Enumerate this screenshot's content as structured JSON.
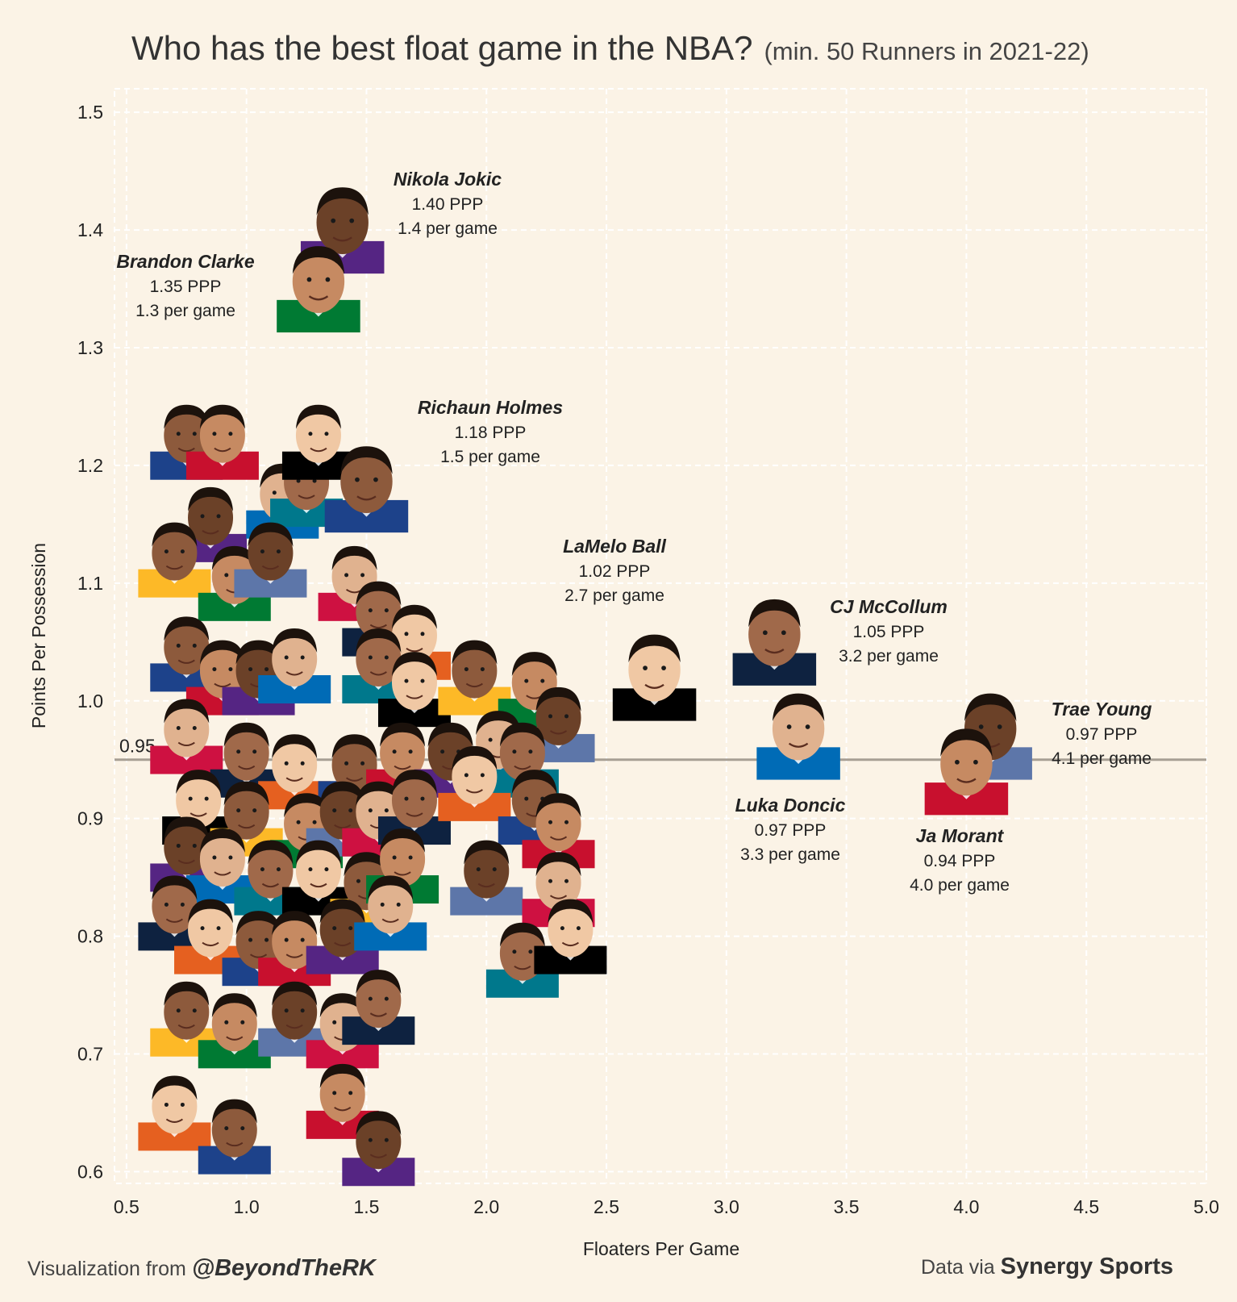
{
  "title": "Who has the best float game in the NBA?",
  "subtitle": "(min. 50 Runners in 2021-22)",
  "footer": {
    "left_prefix": "Visualization from",
    "left_handle": "@BeyondTheRK",
    "right_prefix": "Data via",
    "right_source": "Synergy Sports"
  },
  "chart_data": {
    "type": "scatter",
    "xlabel": "Floaters Per Game",
    "ylabel": "Points Per Possession",
    "xlim": [
      0.45,
      5.0
    ],
    "ylim": [
      0.59,
      1.52
    ],
    "x_ticks": [
      "0.5",
      "1.0",
      "1.5",
      "2.0",
      "2.5",
      "3.0",
      "3.5",
      "4.0",
      "4.5",
      "5.0"
    ],
    "y_ticks": [
      "0.6",
      "0.7",
      "0.8",
      "0.9",
      "1.0",
      "1.1",
      "1.2",
      "1.3",
      "1.4",
      "1.5"
    ],
    "grid": true,
    "reference_line": {
      "y": 0.95,
      "label": "0.95"
    },
    "labeled_points": [
      {
        "name": "Nikola Jokic",
        "ppp": "1.40 PPP",
        "pg": "1.4 per game",
        "x": 1.4,
        "y": 1.4
      },
      {
        "name": "Brandon Clarke",
        "ppp": "1.35 PPP",
        "pg": "1.3 per game",
        "x": 1.3,
        "y": 1.35
      },
      {
        "name": "Richaun Holmes",
        "ppp": "1.18 PPP",
        "pg": "1.5 per game",
        "x": 1.5,
        "y": 1.18
      },
      {
        "name": "LaMelo Ball",
        "ppp": "1.02 PPP",
        "pg": "2.7 per game",
        "x": 2.7,
        "y": 1.02
      },
      {
        "name": "CJ McCollum",
        "ppp": "1.05 PPP",
        "pg": "3.2 per game",
        "x": 3.2,
        "y": 1.05
      },
      {
        "name": "Luka Doncic",
        "ppp": "0.97 PPP",
        "pg": "3.3 per game",
        "x": 3.3,
        "y": 0.97
      },
      {
        "name": "Trae Young",
        "ppp": "0.97 PPP",
        "pg": "4.1 per game",
        "x": 4.1,
        "y": 0.97
      },
      {
        "name": "Ja Morant",
        "ppp": "0.94 PPP",
        "pg": "4.0 per game",
        "x": 4.0,
        "y": 0.94
      }
    ],
    "unlabeled_points": [
      [
        0.75,
        1.22
      ],
      [
        0.9,
        1.22
      ],
      [
        0.85,
        1.15
      ],
      [
        1.15,
        1.17
      ],
      [
        1.25,
        1.18
      ],
      [
        1.3,
        1.22
      ],
      [
        0.7,
        1.12
      ],
      [
        0.95,
        1.1
      ],
      [
        1.1,
        1.12
      ],
      [
        1.45,
        1.1
      ],
      [
        1.55,
        1.07
      ],
      [
        1.7,
        1.05
      ],
      [
        0.75,
        1.04
      ],
      [
        0.9,
        1.02
      ],
      [
        1.05,
        1.02
      ],
      [
        1.2,
        1.03
      ],
      [
        1.55,
        1.03
      ],
      [
        1.7,
        1.01
      ],
      [
        1.95,
        1.02
      ],
      [
        2.2,
        1.01
      ],
      [
        2.3,
        0.98
      ],
      [
        0.75,
        0.97
      ],
      [
        1.0,
        0.95
      ],
      [
        1.2,
        0.94
      ],
      [
        1.45,
        0.94
      ],
      [
        1.65,
        0.95
      ],
      [
        1.85,
        0.95
      ],
      [
        2.05,
        0.96
      ],
      [
        2.15,
        0.95
      ],
      [
        0.8,
        0.91
      ],
      [
        1.0,
        0.9
      ],
      [
        1.25,
        0.89
      ],
      [
        1.4,
        0.9
      ],
      [
        1.55,
        0.9
      ],
      [
        1.7,
        0.91
      ],
      [
        1.95,
        0.93
      ],
      [
        2.2,
        0.91
      ],
      [
        2.3,
        0.89
      ],
      [
        0.75,
        0.87
      ],
      [
        0.9,
        0.86
      ],
      [
        1.1,
        0.85
      ],
      [
        1.3,
        0.85
      ],
      [
        1.5,
        0.84
      ],
      [
        1.65,
        0.86
      ],
      [
        2.0,
        0.85
      ],
      [
        2.3,
        0.84
      ],
      [
        0.7,
        0.82
      ],
      [
        0.85,
        0.8
      ],
      [
        1.05,
        0.79
      ],
      [
        1.2,
        0.79
      ],
      [
        1.4,
        0.8
      ],
      [
        1.6,
        0.82
      ],
      [
        2.15,
        0.78
      ],
      [
        2.35,
        0.8
      ],
      [
        0.75,
        0.73
      ],
      [
        0.95,
        0.72
      ],
      [
        1.2,
        0.73
      ],
      [
        1.4,
        0.72
      ],
      [
        1.55,
        0.74
      ],
      [
        0.7,
        0.65
      ],
      [
        0.95,
        0.63
      ],
      [
        1.4,
        0.66
      ],
      [
        1.55,
        0.62
      ]
    ]
  },
  "colors": {
    "background": "#fbf3e6",
    "grid": "#ffffff",
    "reference_line": "#a79f94",
    "text": "#222222"
  }
}
